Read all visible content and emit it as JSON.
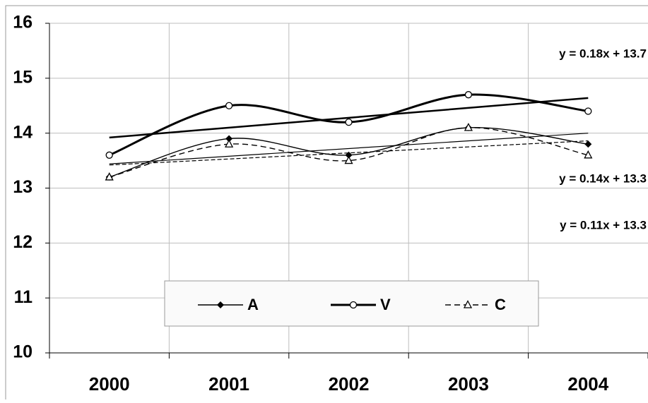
{
  "chart_data": {
    "type": "line",
    "categories": [
      "2000",
      "2001",
      "2002",
      "2003",
      "2004"
    ],
    "series": [
      {
        "name": "A",
        "color": "#000000",
        "marker": "diamond",
        "dash": false,
        "width": 1.4,
        "values": [
          13.2,
          13.9,
          13.6,
          14.1,
          13.8
        ],
        "trendline": {
          "label": "y = 0.14x + 13.3"
        }
      },
      {
        "name": "V",
        "color": "#000000",
        "marker": "circle",
        "dash": false,
        "width": 3,
        "values": [
          13.6,
          14.5,
          14.2,
          14.7,
          14.4
        ],
        "trendline": {
          "label": "y = 0.18x + 13.7"
        }
      },
      {
        "name": "C",
        "color": "#000000",
        "marker": "triangle",
        "dash": true,
        "width": 1.4,
        "values": [
          13.2,
          13.8,
          13.5,
          14.1,
          13.6
        ],
        "trendline": {
          "label": "y = 0.11x + 13.3"
        }
      }
    ],
    "ylim": [
      10,
      16
    ],
    "yticks": [
      10,
      11,
      12,
      13,
      14,
      15,
      16
    ],
    "grid": true,
    "smooth": true,
    "legend": "bottom"
  }
}
